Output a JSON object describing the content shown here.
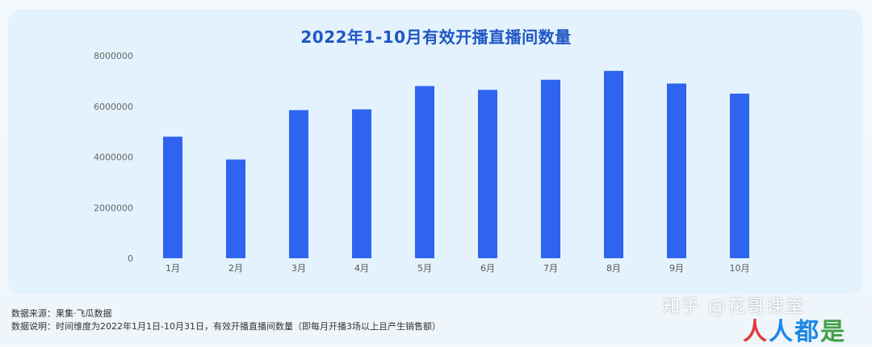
{
  "chart_data": {
    "type": "bar",
    "title": "2022年1-10月有效开播直播间数量",
    "categories": [
      "1月",
      "2月",
      "3月",
      "4月",
      "5月",
      "6月",
      "7月",
      "8月",
      "9月",
      "10月"
    ],
    "values": [
      4800000,
      3900000,
      5850000,
      5880000,
      6800000,
      6650000,
      7050000,
      7400000,
      6900000,
      6500000
    ],
    "yticks": [
      "0",
      "2000000",
      "4000000",
      "6000000",
      "8000000"
    ],
    "ylim": [
      0,
      8000000
    ],
    "grid": false,
    "bar_color": "#2f64f0"
  },
  "notes": {
    "source": "数据来源：果集·飞瓜数据",
    "description": "数据说明：时间维度为2022年1月1日-10月31日，有效开播直播间数量（即每月开播3场以上且产生销售额）"
  },
  "watermark": "知乎 @花哥课堂",
  "logo": {
    "part1": "人",
    "part2": "人都",
    "part3": "是"
  }
}
